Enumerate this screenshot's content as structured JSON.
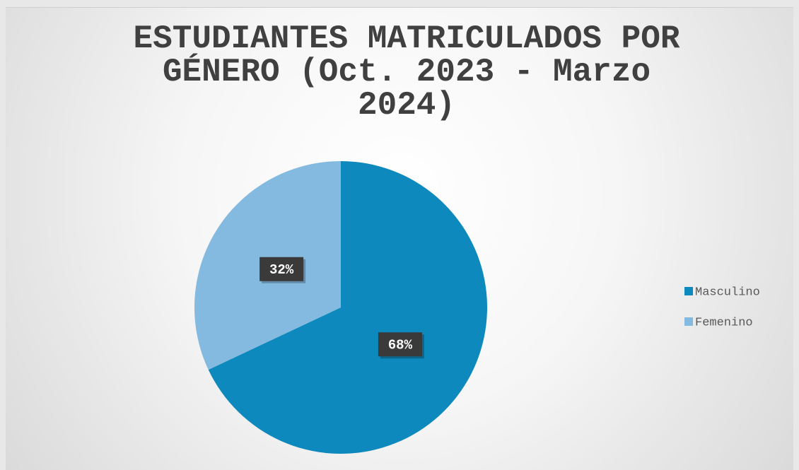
{
  "chart_data": {
    "type": "pie",
    "title": "ESTUDIANTES MATRICULADOS POR GÉNERO (Oct. 2023 - Marzo 2024)",
    "categories": [
      "Masculino",
      "Femenino"
    ],
    "values": [
      68,
      32
    ],
    "value_labels": [
      "68%",
      "32%"
    ],
    "colors": [
      "#0e89bd",
      "#84b9e0"
    ],
    "legend": "right"
  }
}
